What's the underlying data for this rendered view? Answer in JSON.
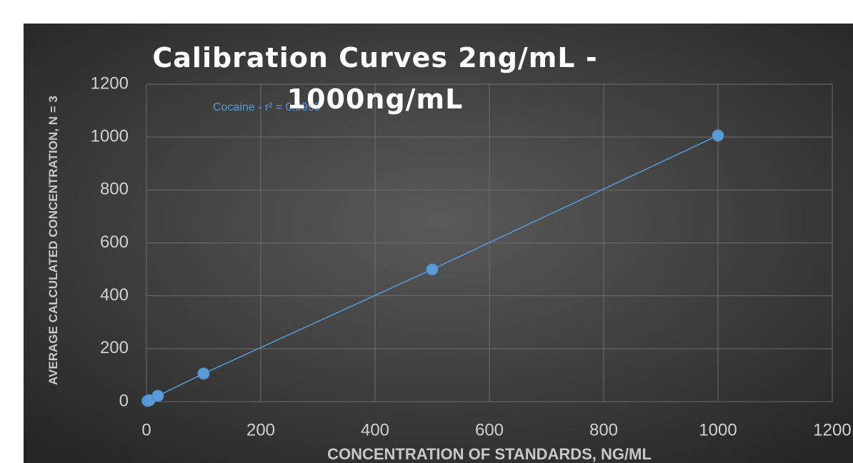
{
  "chart_data": {
    "type": "scatter",
    "title": "Calibration Curves 2ng/mL - 1000ng/mL",
    "x_label": "CONCENTRATION OF STANDARDS, NG/ML",
    "y_label": "AVERAGE CALCULATED CONCENTRATION, N = 3",
    "annotation": "Cocaine - r² = 0.9999",
    "x": [
      2,
      5,
      20,
      100,
      500,
      1000
    ],
    "series": [
      {
        "name": "Cocaine",
        "color": "#5b9bd5",
        "values": [
          3,
          5,
          22,
          106,
          500,
          1006
        ]
      }
    ],
    "xlim": [
      0,
      1200
    ],
    "xticks": [
      0,
      200,
      400,
      600,
      800,
      1000,
      1200
    ],
    "ylim": [
      0,
      1200
    ],
    "yticks": [
      0,
      200,
      400,
      600,
      800,
      1000,
      1200
    ],
    "grid": true
  }
}
